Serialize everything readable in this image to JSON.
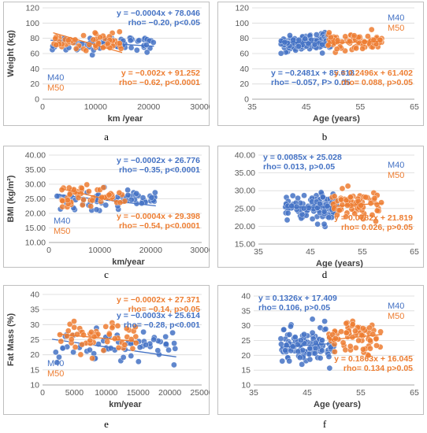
{
  "colors": {
    "m40": "#4472c4",
    "m50": "#ed7d31",
    "frame": "#bfbfbf",
    "grid": "#d9d9d9",
    "axis_text": "#595959",
    "label_text": "#404040"
  },
  "chart_data": [
    {
      "id": "a",
      "type": "scatter",
      "caption": "a",
      "title": "",
      "xlabel": "km /year",
      "ylabel": "Weight (kg)",
      "xlim": [
        0,
        30000
      ],
      "ylim": [
        0,
        120
      ],
      "x_ticks": [
        0,
        10000,
        20000,
        30000
      ],
      "y_ticks": [
        0,
        20,
        40,
        60,
        80,
        100,
        120
      ],
      "x_tick_labels": [
        "0",
        "10000",
        "20000",
        "30000"
      ],
      "y_tick_labels": [
        "0",
        "20",
        "40",
        "60",
        "80",
        "100",
        "120"
      ],
      "grid": "horizontal",
      "legend": [
        "M40",
        "M50"
      ],
      "legend_placement": "bottom-left",
      "series": [
        {
          "name": "M40",
          "fit": {
            "slope": -0.0004,
            "intercept": 78.046,
            "x_range": [
              1500,
              21000
            ]
          },
          "n": 60,
          "x_range": [
            1500,
            21000
          ],
          "y_mean": 74,
          "y_sd": 8,
          "seed": 11
        },
        {
          "name": "M50",
          "fit": {
            "slope": -0.002,
            "intercept": 91.252,
            "x_range": [
              2000,
              15000
            ]
          },
          "n": 55,
          "x_range": [
            2000,
            15000
          ],
          "y_mean": 76,
          "y_sd": 10,
          "seed": 12
        }
      ],
      "annotations": [
        {
          "series": "M40",
          "lines": [
            "y = −0.0004x + 78.046",
            "rho= −0.20, p<0.05"
          ],
          "placement": "top-right"
        },
        {
          "series": "M50",
          "lines": [
            "y = −0.002x + 91.252",
            "rho= −0.62, p<0.0001"
          ],
          "placement": "bottom-right"
        }
      ]
    },
    {
      "id": "b",
      "type": "scatter",
      "caption": "b",
      "title": "",
      "xlabel": "Age (years)",
      "ylabel": "",
      "xlim": [
        35,
        65
      ],
      "ylim": [
        0,
        120
      ],
      "x_ticks": [
        35,
        45,
        55,
        65
      ],
      "y_ticks": [
        0,
        20,
        40,
        60,
        80,
        100,
        120
      ],
      "x_tick_labels": [
        "35",
        "45",
        "55",
        "65"
      ],
      "y_tick_labels": [
        "0",
        "20",
        "40",
        "60",
        "80",
        "100",
        "120"
      ],
      "grid": "horizontal",
      "legend": [
        "M40",
        "M50"
      ],
      "legend_placement": "top-right",
      "series": [
        {
          "name": "M40",
          "fit": {
            "slope": -0.2481,
            "intercept": 85.618,
            "x_range": [
              40,
              50
            ]
          },
          "n": 120,
          "x_range": [
            40,
            50
          ],
          "y_mean": 74,
          "y_sd": 8,
          "seed": 21
        },
        {
          "name": "M50",
          "fit": {
            "slope": 0.2496,
            "intercept": 61.402,
            "x_range": [
              49,
              59
            ]
          },
          "n": 70,
          "x_range": [
            49,
            59
          ],
          "y_mean": 76,
          "y_sd": 9,
          "seed": 22
        }
      ],
      "annotations": [
        {
          "series": "M40",
          "lines": [
            "y = −0.2481x + 85.618",
            "rho= −0.057, P> 0.05"
          ],
          "placement": "bottom-left"
        },
        {
          "series": "M50",
          "lines": [
            "y = 0.2496x + 61.402",
            "rho= 0.088, p>0.05"
          ],
          "placement": "bottom-right"
        }
      ]
    },
    {
      "id": "c",
      "type": "scatter",
      "caption": "c",
      "title": "",
      "xlabel": "km/year",
      "ylabel": "BMI (kg/m²)",
      "xlim": [
        0,
        30000
      ],
      "ylim": [
        10,
        40
      ],
      "x_ticks": [
        0,
        10000,
        20000,
        30000
      ],
      "y_ticks": [
        10,
        15,
        20,
        25,
        30,
        35,
        40
      ],
      "x_tick_labels": [
        "0",
        "10000",
        "20000",
        "30000"
      ],
      "y_tick_labels": [
        "10.00",
        "15.00",
        "20.00",
        "25.00",
        "30.00",
        "35.00",
        "40.00"
      ],
      "grid": "horizontal",
      "legend": [
        "M40",
        "M50"
      ],
      "legend_placement": "bottom-left",
      "series": [
        {
          "name": "M40",
          "fit": {
            "slope": -0.0002,
            "intercept": 26.776,
            "x_range": [
              1500,
              21000
            ]
          },
          "n": 60,
          "x_range": [
            1500,
            21000
          ],
          "y_mean": 25,
          "y_sd": 2.5,
          "seed": 31
        },
        {
          "name": "M50",
          "fit": {
            "slope": -0.0004,
            "intercept": 29.398,
            "x_range": [
              2500,
              15000
            ]
          },
          "n": 55,
          "x_range": [
            2500,
            15000
          ],
          "y_mean": 26,
          "y_sd": 2.5,
          "seed": 32
        }
      ],
      "annotations": [
        {
          "series": "M40",
          "lines": [
            "y = −0.0002x + 26.776",
            "rho= −0.35, p<0.0001"
          ],
          "placement": "top-right"
        },
        {
          "series": "M50",
          "lines": [
            "y = −0.0004x + 29.398",
            "rho= −0.54, p<0.0001"
          ],
          "placement": "bottom-right"
        }
      ]
    },
    {
      "id": "d",
      "type": "scatter",
      "caption": "d",
      "title": "",
      "xlabel": "Age (years)",
      "ylabel": "",
      "xlim": [
        35,
        65
      ],
      "ylim": [
        15,
        40
      ],
      "x_ticks": [
        35,
        45,
        55,
        65
      ],
      "y_ticks": [
        15,
        20,
        25,
        30,
        35,
        40
      ],
      "x_tick_labels": [
        "35",
        "45",
        "55",
        "65"
      ],
      "y_tick_labels": [
        "15.00",
        "20.00",
        "25.00",
        "30.00",
        "35.00",
        "40.00"
      ],
      "grid": "horizontal",
      "legend": [
        "M40",
        "M50"
      ],
      "legend_placement": "top-right",
      "series": [
        {
          "name": "M40",
          "fit": {
            "slope": 0.0085,
            "intercept": 25.028,
            "x_range": [
              40,
              50
            ]
          },
          "n": 120,
          "x_range": [
            40,
            50
          ],
          "y_mean": 25.4,
          "y_sd": 2.6,
          "seed": 41
        },
        {
          "name": "M50",
          "fit": {
            "slope": 0.0782,
            "intercept": 21.819,
            "x_range": [
              49,
              59
            ]
          },
          "n": 70,
          "x_range": [
            49,
            59
          ],
          "y_mean": 26,
          "y_sd": 2.8,
          "seed": 42
        }
      ],
      "annotations": [
        {
          "series": "M40",
          "lines": [
            "y = 0.0085x + 25.028",
            "rho= 0.013, p>0.05"
          ],
          "placement": "top-left"
        },
        {
          "series": "M50",
          "lines": [
            "y = 0.0782x + 21.819",
            "rho= 0.026, p>0.05"
          ],
          "placement": "bottom-right"
        }
      ]
    },
    {
      "id": "e",
      "type": "scatter",
      "caption": "e",
      "title": "",
      "xlabel": "km/year",
      "ylabel": "Fat Mass (%)",
      "xlim": [
        0,
        25000
      ],
      "ylim": [
        10,
        40
      ],
      "x_ticks": [
        0,
        5000,
        10000,
        15000,
        20000,
        25000
      ],
      "y_ticks": [
        10,
        15,
        20,
        25,
        30,
        35,
        40
      ],
      "x_tick_labels": [
        "0",
        "5000",
        "10000",
        "15000",
        "20000",
        "25000"
      ],
      "y_tick_labels": [
        "10",
        "15",
        "20",
        "25",
        "30",
        "35",
        "40"
      ],
      "grid": "horizontal",
      "legend": [
        "M40",
        "M50"
      ],
      "legend_placement": "bottom-left",
      "series": [
        {
          "name": "M40",
          "fit": {
            "slope": -0.0003,
            "intercept": 25.614,
            "x_range": [
              1500,
              21000
            ]
          },
          "n": 60,
          "x_range": [
            1500,
            21000
          ],
          "y_mean": 22.5,
          "y_sd": 4,
          "seed": 51
        },
        {
          "name": "M50",
          "fit": {
            "slope": -0.0002,
            "intercept": 27.371,
            "x_range": [
              2500,
              15000
            ]
          },
          "n": 55,
          "x_range": [
            2500,
            15000
          ],
          "y_mean": 25.5,
          "y_sd": 4,
          "seed": 52
        }
      ],
      "annotations": [
        {
          "series": "M50",
          "lines": [
            "y = −0.0002x + 27.371",
            "rho= −0.14, p>0.05"
          ],
          "placement": "top-right"
        },
        {
          "series": "M40",
          "lines": [
            "y = −0.0003x + 25.614",
            "rho= −0.28, p<0.001"
          ],
          "placement": "top-right-2"
        }
      ]
    },
    {
      "id": "f",
      "type": "scatter",
      "caption": "f",
      "title": "",
      "xlabel": "Age (years)",
      "ylabel": "",
      "xlim": [
        35,
        65
      ],
      "ylim": [
        10,
        40
      ],
      "x_ticks": [
        35,
        45,
        55,
        65
      ],
      "y_ticks": [
        10,
        15,
        20,
        25,
        30,
        35,
        40
      ],
      "x_tick_labels": [
        "35",
        "45",
        "55",
        "65"
      ],
      "y_tick_labels": [
        "10",
        "15",
        "20",
        "25",
        "30",
        "35",
        "40"
      ],
      "grid": "horizontal",
      "legend": [
        "M40",
        "M50"
      ],
      "legend_placement": "top-right",
      "series": [
        {
          "name": "M40",
          "fit": {
            "slope": 0.1326,
            "intercept": 17.409,
            "x_range": [
              40,
              50
            ]
          },
          "n": 120,
          "x_range": [
            40,
            50
          ],
          "y_mean": 23.2,
          "y_sd": 4.2,
          "seed": 61
        },
        {
          "name": "M50",
          "fit": {
            "slope": 0.1863,
            "intercept": 16.045,
            "x_range": [
              49,
              59
            ]
          },
          "n": 70,
          "x_range": [
            49,
            59
          ],
          "y_mean": 26,
          "y_sd": 3.5,
          "seed": 62
        }
      ],
      "annotations": [
        {
          "series": "M40",
          "lines": [
            "y = 0.1326x + 17.409",
            "rho= 0.106, p>0.05"
          ],
          "placement": "top-left"
        },
        {
          "series": "M50",
          "lines": [
            "y = 0.1863x + 16.045",
            "rho= 0.134 p>0.05"
          ],
          "placement": "bottom-right"
        }
      ]
    }
  ]
}
